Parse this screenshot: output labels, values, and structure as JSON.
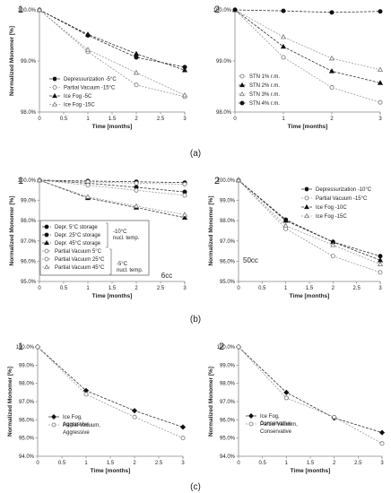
{
  "captions": [
    "(a)",
    "(b)",
    "(c)"
  ],
  "chart_data": [
    {
      "id": "a1",
      "type": "line",
      "panel_label": "1",
      "xlabel": "Time [months]",
      "ylabel": "Normalized Monomer [%]",
      "xlim": [
        0,
        3
      ],
      "ylim": [
        98.0,
        100.0
      ],
      "xticks": [
        0,
        0.5,
        1,
        1.5,
        2,
        2.5,
        3
      ],
      "xtick_labels": [
        "0",
        "0.5",
        "1",
        "1.5",
        "2",
        "2.5",
        "3"
      ],
      "yticks": [
        98,
        99,
        100
      ],
      "ytick_labels": [
        "98.0%",
        "99.0%",
        "100.0%"
      ],
      "legend_position": "bottom-left",
      "grid": false,
      "series": [
        {
          "name": "Depressurization -5°C",
          "marker": "circle-filled",
          "x": [
            0,
            1,
            2,
            3
          ],
          "y": [
            100.0,
            99.5,
            99.07,
            98.88
          ]
        },
        {
          "name": "Partial Vacuum -15°C",
          "marker": "circle-open",
          "x": [
            0,
            1,
            2,
            3
          ],
          "y": [
            100.0,
            99.18,
            98.53,
            98.3
          ]
        },
        {
          "name": "Ice Fog -5C",
          "marker": "triangle-filled",
          "x": [
            0,
            1,
            2,
            3
          ],
          "y": [
            100.0,
            99.52,
            99.14,
            98.82
          ]
        },
        {
          "name": "Ice Fog -15C",
          "marker": "triangle-open",
          "x": [
            0,
            1,
            2,
            3
          ],
          "y": [
            100.0,
            99.22,
            98.77,
            98.33
          ]
        }
      ]
    },
    {
      "id": "a2",
      "type": "line",
      "panel_label": "2",
      "xlabel": "Time [months]",
      "ylabel": "",
      "xlim": [
        0,
        3
      ],
      "ylim": [
        98.0,
        100.0
      ],
      "xticks": [
        0,
        1,
        2,
        3
      ],
      "xtick_labels": [
        "0",
        "1",
        "2",
        "3"
      ],
      "yticks": [
        98,
        99,
        100
      ],
      "ytick_labels": [
        "98.0%",
        "99.0%",
        "100.0%"
      ],
      "legend_position": "bottom-left",
      "grid": false,
      "series": [
        {
          "name": "STN 1% r.m.",
          "marker": "circle-open",
          "x": [
            0,
            1,
            2,
            3
          ],
          "y": [
            100.0,
            99.07,
            98.48,
            98.19
          ]
        },
        {
          "name": "STN 2% r.m.",
          "marker": "triangle-filled",
          "x": [
            0,
            1,
            2,
            3
          ],
          "y": [
            100.0,
            99.28,
            98.8,
            98.57
          ]
        },
        {
          "name": "STN 3% r.m.",
          "marker": "triangle-open",
          "x": [
            0,
            1,
            2,
            3
          ],
          "y": [
            100.0,
            99.47,
            99.05,
            98.83
          ]
        },
        {
          "name": "STN 4% r.m.",
          "marker": "circle-filled",
          "x": [
            0,
            1,
            2,
            3
          ],
          "y": [
            100.0,
            99.98,
            99.95,
            99.97
          ]
        }
      ]
    },
    {
      "id": "b1",
      "type": "line",
      "panel_label": "1",
      "annotation": "6cc",
      "xlabel": "Time [months]",
      "ylabel": "Normalized Monomer [%]",
      "xlim": [
        0,
        3
      ],
      "ylim": [
        95.0,
        100.0
      ],
      "xticks": [
        0,
        0.5,
        1,
        1.5,
        2,
        2.5,
        3
      ],
      "xtick_labels": [
        "0",
        "0.5",
        "1",
        "1.5",
        "2",
        "2.5",
        "3"
      ],
      "yticks": [
        95,
        96,
        97,
        98,
        99,
        100
      ],
      "ytick_labels": [
        "95.0%",
        "96.0%",
        "97.0%",
        "98.0%",
        "99.0%",
        "100.0%"
      ],
      "legend_position": "bottom-left",
      "grid": false,
      "legend_group_labels": [
        [
          "-10°C",
          "nucl. temp."
        ],
        [
          "-5°C",
          "nucl. temp."
        ]
      ],
      "series": [
        {
          "name": "Depr. 5°C storage",
          "marker": "circle-filled",
          "x": [
            0,
            1,
            2,
            3
          ],
          "y": [
            100.0,
            99.96,
            99.92,
            99.88
          ]
        },
        {
          "name": "Depr. 25°C storage",
          "marker": "circle-filled",
          "x": [
            0,
            1,
            2,
            3
          ],
          "y": [
            100.0,
            99.85,
            99.65,
            99.42
          ]
        },
        {
          "name": "Depr. 45°C storage",
          "marker": "triangle-filled",
          "x": [
            0,
            1,
            2,
            3
          ],
          "y": [
            100.0,
            99.12,
            98.65,
            98.15
          ]
        },
        {
          "name": "Partial Vacuum 5°C",
          "marker": "circle-open",
          "x": [
            0,
            1,
            2,
            3
          ],
          "y": [
            100.0,
            99.92,
            99.85,
            99.8
          ]
        },
        {
          "name": "Partial Vacuum 25°C",
          "marker": "circle-open",
          "x": [
            0,
            1,
            2,
            3
          ],
          "y": [
            100.0,
            99.75,
            99.5,
            99.25
          ]
        },
        {
          "name": "Partial Vacuum 45°C",
          "marker": "triangle-open",
          "x": [
            0,
            1,
            2,
            3
          ],
          "y": [
            100.0,
            99.18,
            98.72,
            98.3
          ]
        }
      ]
    },
    {
      "id": "b2",
      "type": "line",
      "panel_label": "2",
      "annotation": "50cc",
      "xlabel": "Time [months]",
      "ylabel": "Normalized Monomer [%]",
      "xlim": [
        0,
        3
      ],
      "ylim": [
        95.0,
        100.0
      ],
      "xticks": [
        0,
        0.5,
        1,
        1.5,
        2,
        2.5,
        3
      ],
      "xtick_labels": [
        "0",
        "0.5",
        "1",
        "1.5",
        "2",
        "2.5",
        "3"
      ],
      "yticks": [
        95,
        96,
        97,
        98,
        99,
        100
      ],
      "ytick_labels": [
        "95.0%",
        "96.0%",
        "97.0%",
        "98.0%",
        "99.0%",
        "100.0%"
      ],
      "legend_position": "top-right",
      "grid": false,
      "series": [
        {
          "name": "Depressurization -10°C",
          "marker": "circle-filled",
          "x": [
            0,
            1,
            2,
            3
          ],
          "y": [
            100.0,
            98.05,
            96.95,
            96.25
          ]
        },
        {
          "name": "Partial Vacuum -15°C",
          "marker": "circle-open",
          "x": [
            0,
            1,
            2,
            3
          ],
          "y": [
            100.0,
            97.6,
            96.25,
            95.45
          ]
        },
        {
          "name": "Ice Fog -10C",
          "marker": "triangle-filled",
          "x": [
            0,
            1,
            2,
            3
          ],
          "y": [
            100.0,
            98.0,
            96.95,
            96.05
          ]
        },
        {
          "name": "Ice Fog -15C",
          "marker": "triangle-open",
          "x": [
            0,
            1,
            2,
            3
          ],
          "y": [
            100.0,
            97.75,
            96.8,
            95.85
          ]
        }
      ]
    },
    {
      "id": "c1",
      "type": "line",
      "panel_label": "1",
      "xlabel": "Time [months]",
      "ylabel": "Normalized Monomer [%]",
      "xlim": [
        0,
        3
      ],
      "ylim": [
        94.0,
        100.0
      ],
      "xticks": [
        0,
        0.5,
        1,
        1.5,
        2,
        2.5,
        3
      ],
      "xtick_labels": [
        "0",
        "0.5",
        "1",
        "1.5",
        "2",
        "2.5",
        "3"
      ],
      "yticks": [
        94,
        95,
        96,
        97,
        98,
        99,
        100
      ],
      "ytick_labels": [
        "94.0%",
        "95.0%",
        "96.0%",
        "97.0%",
        "98.0%",
        "99.0%",
        "100.0%"
      ],
      "legend_position": "bottom-left",
      "grid": false,
      "series": [
        {
          "name": "Ice Fog, Aggressive",
          "marker": "diamond-filled",
          "x": [
            0,
            1,
            2,
            3
          ],
          "y": [
            100.0,
            97.6,
            96.5,
            95.6
          ]
        },
        {
          "name": "Partial Vacuum, Aggressive",
          "marker": "circle-open",
          "x": [
            0,
            1,
            2,
            3
          ],
          "y": [
            100.0,
            97.4,
            96.15,
            95.0
          ]
        }
      ]
    },
    {
      "id": "c2",
      "type": "line",
      "panel_label": "2",
      "xlabel": "Time [months]",
      "ylabel": "Normalized Monomer [%]",
      "xlim": [
        0,
        3
      ],
      "ylim": [
        94.0,
        100.0
      ],
      "xticks": [
        0,
        0.5,
        1,
        1.5,
        2,
        2.5,
        3
      ],
      "xtick_labels": [
        "0",
        "0.5",
        "1",
        "1.5",
        "2",
        "2.5",
        "3"
      ],
      "yticks": [
        94,
        95,
        96,
        97,
        98,
        99,
        100
      ],
      "ytick_labels": [
        "94.0%",
        "95.0%",
        "96.0%",
        "97.0%",
        "98.0%",
        "99.0%",
        "100.0%"
      ],
      "legend_position": "bottom-left",
      "grid": false,
      "series": [
        {
          "name": "Ice Fog, Conservative",
          "marker": "diamond-filled",
          "x": [
            0,
            1,
            2,
            3
          ],
          "y": [
            100.0,
            97.5,
            96.1,
            95.3
          ]
        },
        {
          "name": "Partial Vacuum, Conservative",
          "marker": "circle-open",
          "x": [
            0,
            1,
            2,
            3
          ],
          "y": [
            100.0,
            97.2,
            96.15,
            94.7
          ]
        }
      ]
    }
  ]
}
